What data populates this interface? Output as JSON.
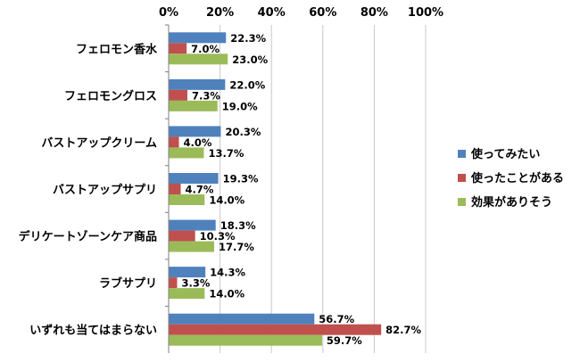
{
  "chart_data": {
    "type": "bar",
    "orientation": "horizontal",
    "categories": [
      "フェロモン香水",
      "フェロモングロス",
      "バストアップクリーム",
      "バストアップサプリ",
      "デリケートゾーンケア商品",
      "ラブサプリ",
      "いずれも当てはまらない"
    ],
    "series": [
      {
        "name": "使ってみたい",
        "color": "#4f81bd",
        "values": [
          22.3,
          22.0,
          20.3,
          19.3,
          18.3,
          14.3,
          56.7
        ]
      },
      {
        "name": "使ったことがある",
        "color": "#c0504d",
        "values": [
          7.0,
          7.3,
          4.0,
          4.7,
          10.3,
          3.3,
          82.7
        ]
      },
      {
        "name": "効果がありそう",
        "color": "#9bbb59",
        "values": [
          23.0,
          19.0,
          13.7,
          14.0,
          17.7,
          14.0,
          59.7
        ]
      }
    ],
    "xlim": [
      0,
      100
    ],
    "x_ticks": [
      "0%",
      "20%",
      "40%",
      "60%",
      "80%",
      "100%"
    ],
    "x_tick_values": [
      0,
      20,
      40,
      60,
      80,
      100
    ],
    "value_suffix": "%",
    "grid": true,
    "legend_position": "right",
    "title": "",
    "xlabel": "",
    "ylabel": ""
  }
}
